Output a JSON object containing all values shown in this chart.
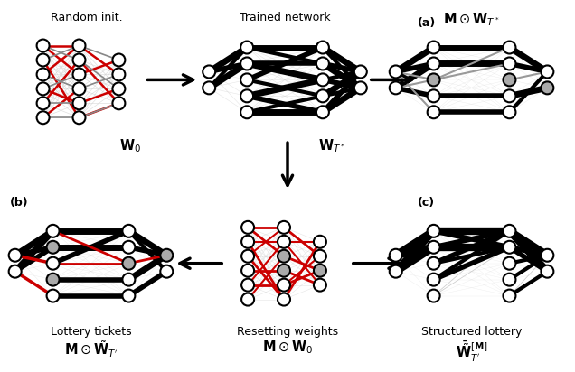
{
  "bg_color": "#ffffff",
  "node_color_white": "#ffffff",
  "node_color_gray": "#aaaaaa",
  "edge_color_black": "#000000",
  "edge_color_red": "#cc0000",
  "edge_color_gray": "#999999",
  "edge_color_lightgray": "#cccccc",
  "edge_color_dgray": "#888888",
  "titles": {
    "top_left": "Random init.",
    "top_mid": "Trained network",
    "top_right": "$\\mathbf{M} \\odot \\mathbf{W}_{T^*}$",
    "top_right_label": "(a)",
    "bot_left": "Lottery tickets",
    "bot_left_math": "$\\mathbf{M} \\odot \\tilde{\\mathbf{W}}_{T^\\prime}$",
    "bot_left_label": "(b)",
    "bot_mid": "Resetting weights",
    "bot_mid_math": "$\\mathbf{M} \\odot \\mathbf{W}_0$",
    "bot_right": "Structured lottery",
    "bot_right_math": "$\\bar{\\tilde{\\mathbf{W}}}_{T^\\prime}^{[\\mathbf{M}]}$",
    "bot_right_label": "(c)",
    "W0": "$\\mathbf{W}_0$",
    "WT": "$\\mathbf{W}_{T^*}$"
  },
  "fig_w": 6.36,
  "fig_h": 4.12,
  "dpi": 100
}
